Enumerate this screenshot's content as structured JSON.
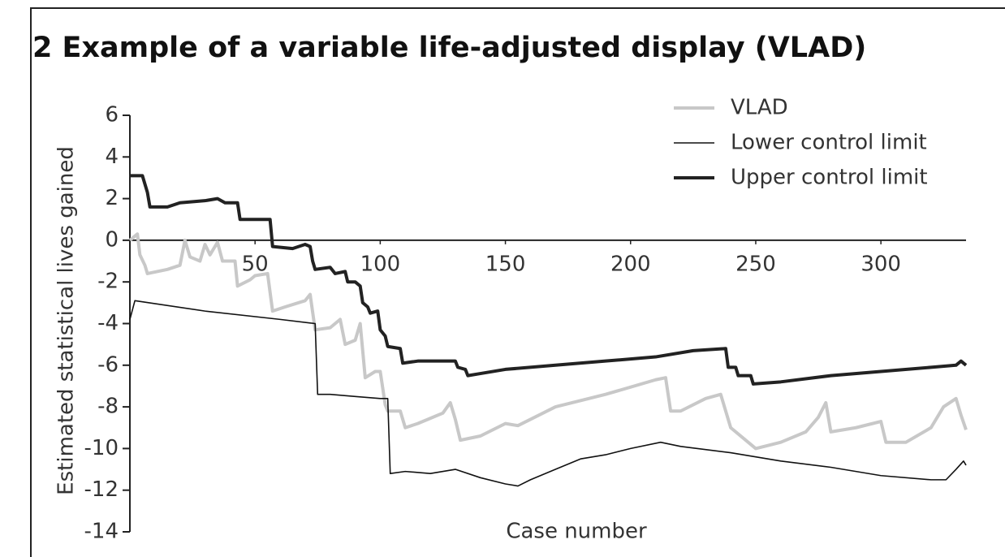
{
  "chart_data": {
    "type": "line",
    "title": "2  Example of a variable life-adjusted display (VLAD)",
    "x_label": "Case number",
    "y_label": "Estimated statistical lives gained",
    "xlim": [
      0,
      334
    ],
    "xticks": [
      50,
      100,
      150,
      200,
      250,
      300
    ],
    "ylim": [
      -14,
      6
    ],
    "yticks": [
      6,
      4,
      2,
      0,
      -2,
      -4,
      -6,
      -8,
      -10,
      -12,
      -14
    ],
    "legend": "top-right",
    "series": [
      {
        "name": "VLAD",
        "color": "#c8c8c8",
        "width": 4,
        "x": [
          0,
          3,
          4,
          6,
          7,
          15,
          20,
          22,
          24,
          28,
          30,
          32,
          35,
          37,
          42,
          43,
          48,
          50,
          55,
          57,
          62,
          70,
          72,
          74,
          80,
          84,
          86,
          90,
          92,
          94,
          98,
          100,
          102,
          103,
          108,
          110,
          115,
          125,
          128,
          130,
          132,
          140,
          150,
          155,
          170,
          190,
          210,
          214,
          216,
          220,
          230,
          236,
          240,
          250,
          260,
          270,
          275,
          278,
          280,
          290,
          300,
          302,
          310,
          320,
          325,
          330,
          332,
          334
        ],
        "values": [
          0,
          0.3,
          -0.7,
          -1.2,
          -1.6,
          -1.4,
          -1.2,
          0,
          -0.8,
          -1,
          -0.2,
          -0.7,
          -0.1,
          -1,
          -1,
          -2.2,
          -1.9,
          -1.7,
          -1.6,
          -3.4,
          -3.2,
          -2.9,
          -2.6,
          -4.3,
          -4.2,
          -3.8,
          -5,
          -4.8,
          -4,
          -6.6,
          -6.3,
          -6.3,
          -7.9,
          -8.2,
          -8.2,
          -9,
          -8.8,
          -8.3,
          -7.8,
          -8.6,
          -9.6,
          -9.4,
          -8.8,
          -8.9,
          -8,
          -7.4,
          -6.7,
          -6.6,
          -8.2,
          -8.2,
          -7.6,
          -7.4,
          -9,
          -10,
          -9.7,
          -9.2,
          -8.5,
          -7.8,
          -9.2,
          -9,
          -8.7,
          -9.7,
          -9.7,
          -9,
          -8,
          -7.6,
          -8.4,
          -9.1
        ]
      },
      {
        "name": "Lower control limit",
        "color": "#111111",
        "width": 1.6,
        "x": [
          0,
          2,
          30,
          60,
          74,
          75,
          80,
          90,
          100,
          103,
          104,
          110,
          120,
          130,
          140,
          150,
          155,
          160,
          170,
          180,
          190,
          200,
          212,
          220,
          240,
          260,
          280,
          300,
          320,
          326,
          330,
          333,
          334
        ],
        "values": [
          -3.8,
          -2.9,
          -3.4,
          -3.8,
          -4,
          -7.4,
          -7.4,
          -7.5,
          -7.6,
          -7.6,
          -11.2,
          -11.1,
          -11.2,
          -11,
          -11.4,
          -11.7,
          -11.8,
          -11.5,
          -11,
          -10.5,
          -10.3,
          -10,
          -9.7,
          -9.9,
          -10.2,
          -10.6,
          -10.9,
          -11.3,
          -11.5,
          -11.5,
          -11,
          -10.6,
          -10.8
        ]
      },
      {
        "name": "Upper control limit",
        "color": "#222222",
        "width": 4,
        "x": [
          0,
          5,
          7,
          8,
          15,
          20,
          30,
          35,
          38,
          43,
          44,
          50,
          56,
          57,
          65,
          70,
          72,
          73,
          74,
          80,
          82,
          86,
          87,
          90,
          92,
          93,
          95,
          96,
          99,
          100,
          102,
          103,
          108,
          109,
          115,
          130,
          131,
          134,
          135,
          140,
          150,
          170,
          190,
          210,
          225,
          238,
          239,
          242,
          243,
          248,
          249,
          260,
          280,
          300,
          320,
          330,
          332,
          334
        ],
        "values": [
          3.1,
          3.1,
          2.3,
          1.6,
          1.6,
          1.8,
          1.9,
          2,
          1.8,
          1.8,
          1,
          1,
          1,
          -0.3,
          -0.4,
          -0.2,
          -0.3,
          -1,
          -1.4,
          -1.3,
          -1.6,
          -1.5,
          -2,
          -2,
          -2.2,
          -3,
          -3.2,
          -3.5,
          -3.4,
          -4.3,
          -4.6,
          -5.1,
          -5.2,
          -5.9,
          -5.8,
          -5.8,
          -6.1,
          -6.2,
          -6.5,
          -6.4,
          -6.2,
          -6,
          -5.8,
          -5.6,
          -5.3,
          -5.2,
          -6.1,
          -6.1,
          -6.5,
          -6.5,
          -6.9,
          -6.8,
          -6.5,
          -6.3,
          -6.1,
          -6,
          -5.8,
          -6
        ]
      }
    ]
  }
}
